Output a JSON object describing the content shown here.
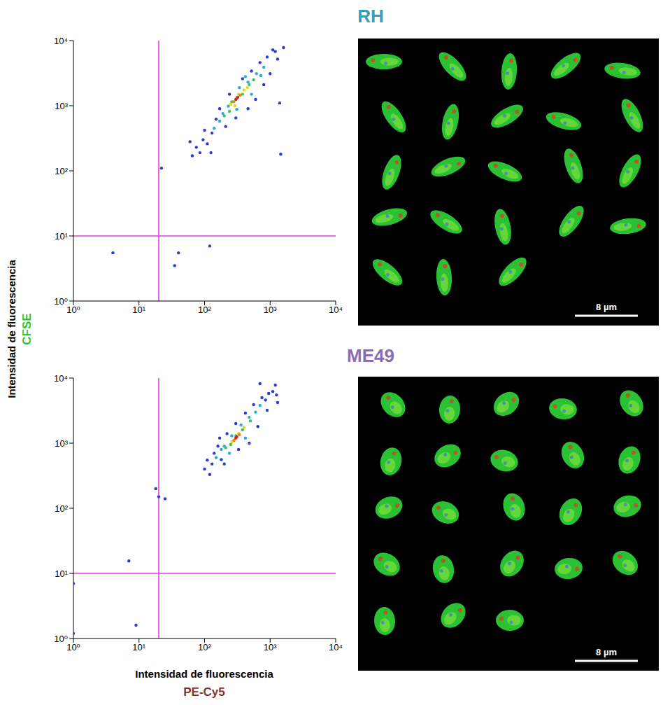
{
  "axis_titles": {
    "x_label": "Intensidad de fluorescencia",
    "x_channel": "PE-Cy5",
    "y_label": "Intensidad de fluorescencia",
    "y_channel": "CFSE"
  },
  "chart_data": [
    {
      "type": "scatter",
      "title": "RH",
      "log": true,
      "xlim": [
        1,
        10000
      ],
      "ylim": [
        1,
        10000
      ],
      "xticks": [
        {
          "value": 1,
          "label": "10⁰"
        },
        {
          "value": 10,
          "label": "10¹"
        },
        {
          "value": 100,
          "label": "10²"
        },
        {
          "value": 1000,
          "label": "10³"
        },
        {
          "value": 10000,
          "label": "10⁴"
        }
      ],
      "yticks": [
        {
          "value": 1,
          "label": "10⁰"
        },
        {
          "value": 10,
          "label": "10¹"
        },
        {
          "value": 100,
          "label": "10²"
        },
        {
          "value": 1000,
          "label": "10³"
        },
        {
          "value": 10000,
          "label": "10⁴"
        }
      ],
      "gates": {
        "x": 20,
        "y": 10
      },
      "image": {
        "scale_bar": "8 µm"
      },
      "series": [
        {
          "color": "#2a3bd0",
          "x": [
            4,
            22,
            40,
            35,
            120,
            1400,
            1450,
            1600,
            65,
            75,
            85,
            95,
            110,
            60,
            130,
            150,
            210,
            170,
            240,
            380,
            520,
            700,
            900,
            1200,
            1000,
            800,
            600,
            1300,
            300,
            125,
            100,
            460,
            1100
          ],
          "y": [
            5.5,
            110,
            5.5,
            3.5,
            7,
            1100,
            180,
            7800,
            170,
            230,
            190,
            300,
            260,
            280,
            380,
            620,
            480,
            900,
            1500,
            2600,
            3400,
            4600,
            5600,
            6800,
            3100,
            2100,
            1250,
            5200,
            650,
            190,
            420,
            900,
            7200
          ]
        },
        {
          "color": "#1fb0e0",
          "x": [
            140,
            190,
            230,
            340,
            460,
            620,
            170,
            520,
            720,
            310,
            420,
            800
          ],
          "y": [
            450,
            760,
            980,
            1900,
            2300,
            3100,
            580,
            1500,
            2900,
            880,
            2800,
            3900
          ]
        },
        {
          "color": "#3fc45a",
          "x": [
            200,
            260,
            380,
            480,
            560,
            240
          ],
          "y": [
            700,
            1150,
            1500,
            2100,
            2500,
            820
          ]
        },
        {
          "color": "#e6d420",
          "x": [
            250,
            330,
            400,
            290,
            450
          ],
          "y": [
            1050,
            1500,
            1750,
            1000,
            1900
          ]
        },
        {
          "color": "#f08020",
          "x": [
            280,
            350,
            310
          ],
          "y": [
            1150,
            1450,
            1300
          ]
        },
        {
          "color": "#d42020",
          "x": [
            300,
            320
          ],
          "y": [
            1250,
            1350
          ]
        }
      ]
    },
    {
      "type": "scatter",
      "title": "ME49",
      "log": true,
      "xlim": [
        1,
        10000
      ],
      "ylim": [
        1,
        10000
      ],
      "xticks": [
        {
          "value": 1,
          "label": "10⁰"
        },
        {
          "value": 10,
          "label": "10¹"
        },
        {
          "value": 100,
          "label": "10²"
        },
        {
          "value": 1000,
          "label": "10³"
        },
        {
          "value": 10000,
          "label": "10⁴"
        }
      ],
      "yticks": [
        {
          "value": 1,
          "label": "10⁰"
        },
        {
          "value": 10,
          "label": "10¹"
        },
        {
          "value": 100,
          "label": "10²"
        },
        {
          "value": 1000,
          "label": "10³"
        },
        {
          "value": 10000,
          "label": "10⁴"
        }
      ],
      "gates": {
        "x": 20,
        "y": 10
      },
      "image": {
        "scale_bar": "8 µm"
      },
      "series": [
        {
          "color": "#2a3bd0",
          "x": [
            18,
            7,
            9,
            1,
            1,
            20,
            25,
            1200,
            700,
            100,
            110,
            120,
            140,
            130,
            160,
            180,
            220,
            300,
            420,
            560,
            750,
            950,
            1100,
            1250,
            900,
            650,
            480,
            330,
            200,
            1300,
            170,
            850
          ],
          "y": [
            200,
            15.5,
            1.6,
            7,
            1.2,
            150,
            140,
            7800,
            8200,
            400,
            550,
            330,
            700,
            480,
            900,
            560,
            1400,
            2000,
            2900,
            3900,
            5000,
            5800,
            6200,
            5500,
            3200,
            1800,
            1000,
            800,
            480,
            4200,
            1200,
            4600
          ]
        },
        {
          "color": "#1fb0e0",
          "x": [
            150,
            200,
            260,
            360,
            480,
            600,
            240,
            420,
            700,
            180
          ],
          "y": [
            600,
            900,
            1300,
            1900,
            2500,
            3000,
            700,
            1200,
            3800,
            800
          ]
        },
        {
          "color": "#3fc45a",
          "x": [
            210,
            300,
            380,
            500,
            250
          ],
          "y": [
            850,
            1300,
            1600,
            2200,
            950
          ]
        },
        {
          "color": "#e6d420",
          "x": [
            260,
            330,
            400,
            290
          ],
          "y": [
            1050,
            1400,
            1750,
            1150
          ]
        },
        {
          "color": "#f08020",
          "x": [
            280,
            340
          ],
          "y": [
            1100,
            1350
          ]
        },
        {
          "color": "#d42020",
          "x": [
            300,
            310
          ],
          "y": [
            1200,
            1250
          ]
        }
      ]
    }
  ]
}
